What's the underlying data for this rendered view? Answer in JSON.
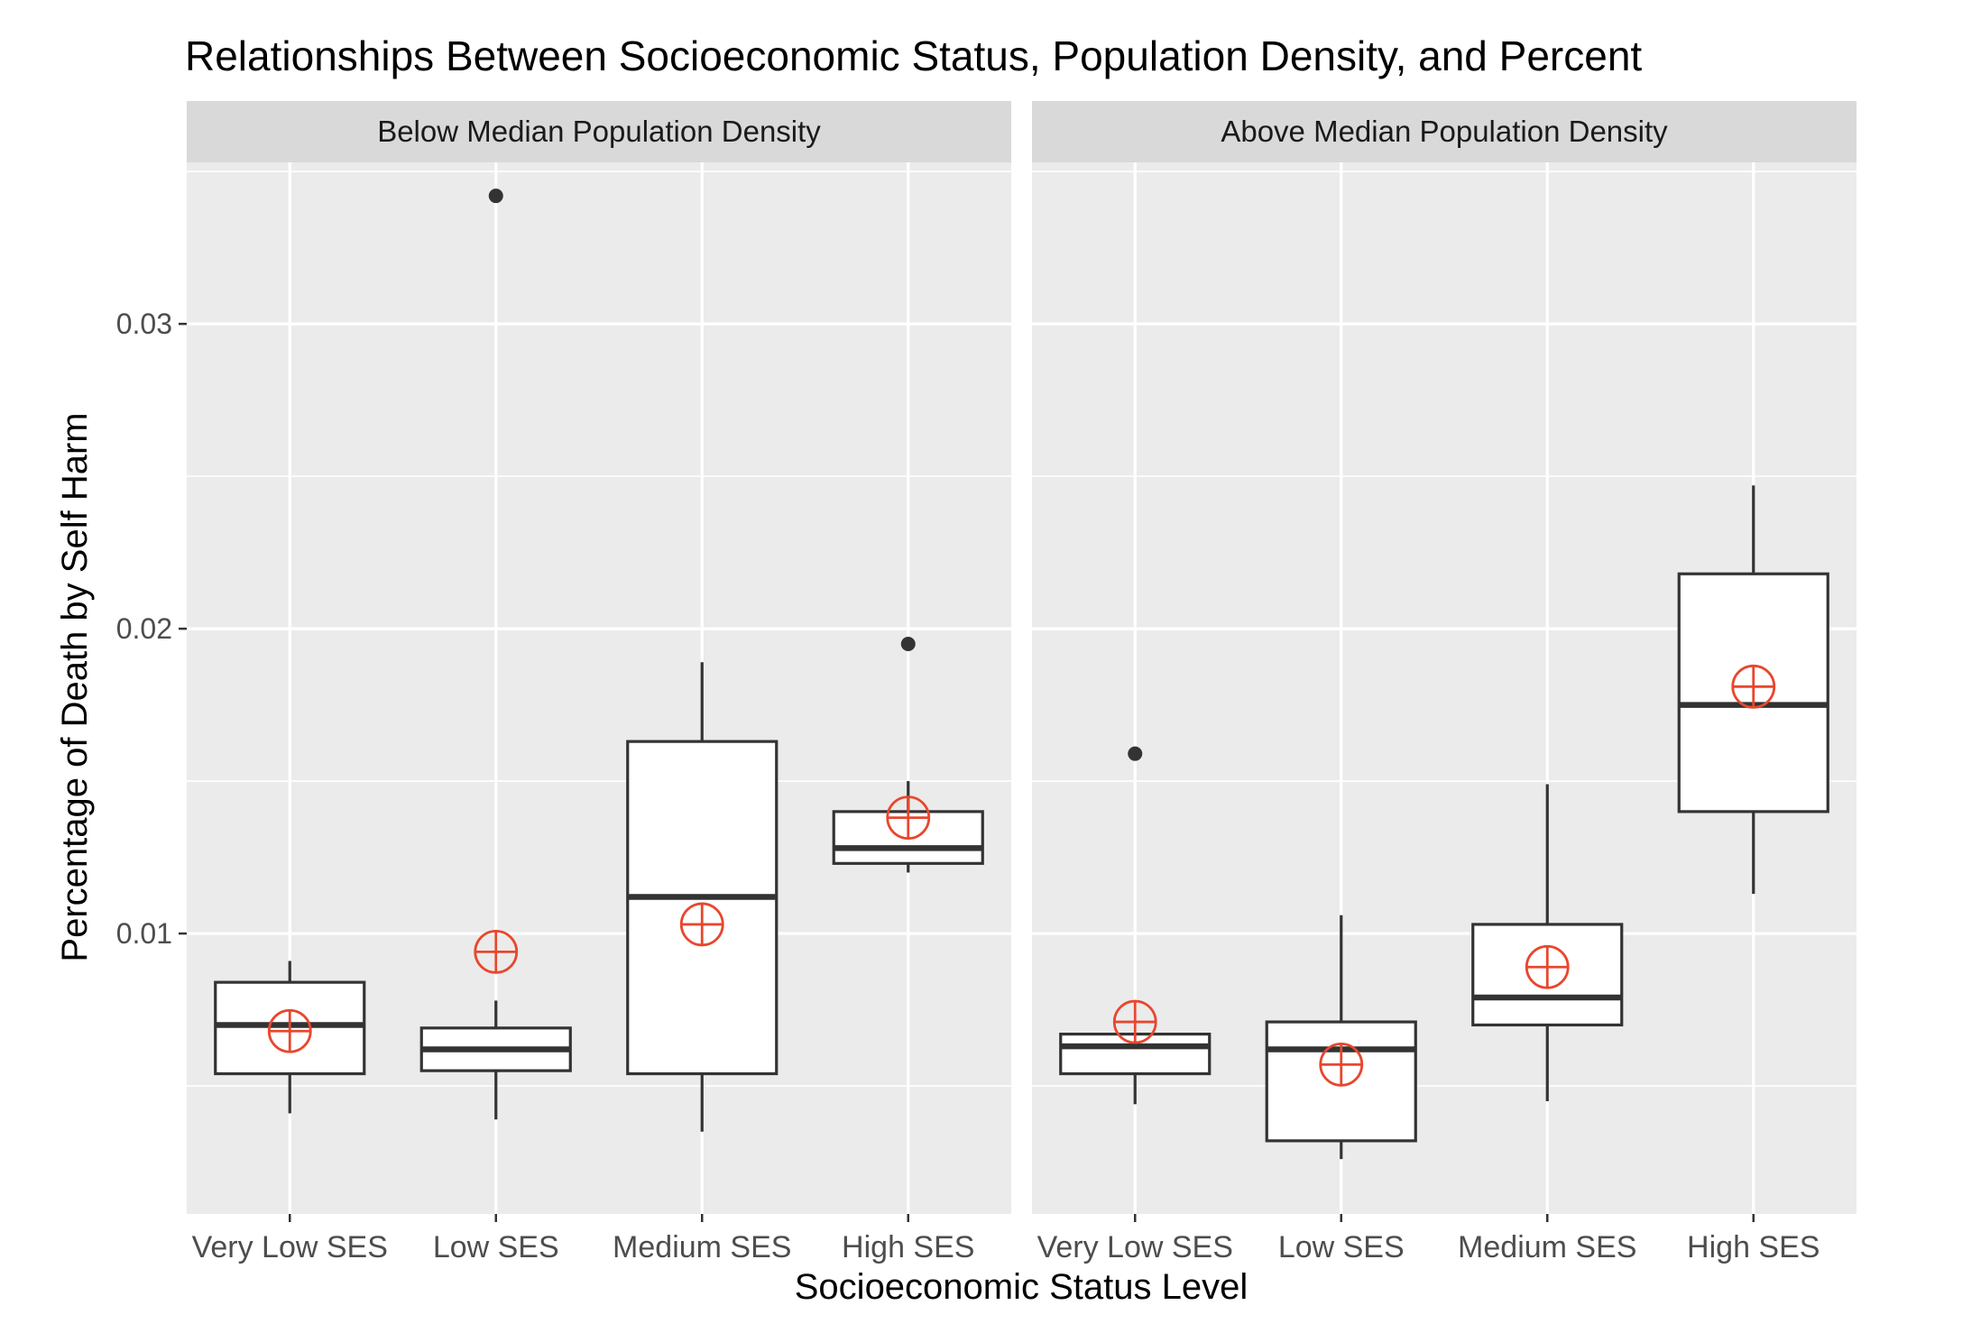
{
  "chart_data": {
    "type": "boxplot",
    "title": "Relationships Between Socioeconomic Status, Population Density, and Percent",
    "xlabel": "Socioeconomic Status Level",
    "ylabel": "Percentage of Death by Self Harm",
    "categories": [
      "Very Low SES",
      "Low SES",
      "Medium SES",
      "High SES"
    ],
    "ylim": [
      0.0008,
      0.0353
    ],
    "yticks": [
      0.01,
      0.02,
      0.03
    ],
    "ytick_labels": [
      "0.01",
      "0.02",
      "0.03"
    ],
    "grid": true,
    "mean_marker": "crossed circle",
    "colors": {
      "panel_bg": "#ebebeb",
      "strip_bg": "#d9d9d9",
      "grid": "#ffffff",
      "box_line": "#333333",
      "box_fill": "#ffffff",
      "mean": "#e8472e",
      "outlier": "#333333"
    },
    "facets": [
      {
        "label": "Below Median Population Density",
        "boxes": [
          {
            "category": "Very Low SES",
            "whisker_low": 0.0041,
            "q1": 0.0054,
            "median": 0.007,
            "q3": 0.0084,
            "whisker_high": 0.0091,
            "mean": 0.0068,
            "outliers": []
          },
          {
            "category": "Low SES",
            "whisker_low": 0.0039,
            "q1": 0.0055,
            "median": 0.0062,
            "q3": 0.0069,
            "whisker_high": 0.0078,
            "mean": 0.0094,
            "outliers": [
              0.0342
            ]
          },
          {
            "category": "Medium SES",
            "whisker_low": 0.0035,
            "q1": 0.0054,
            "median": 0.0112,
            "q3": 0.0163,
            "whisker_high": 0.0189,
            "mean": 0.0103,
            "outliers": []
          },
          {
            "category": "High SES",
            "whisker_low": 0.012,
            "q1": 0.0123,
            "median": 0.0128,
            "q3": 0.014,
            "whisker_high": 0.015,
            "mean": 0.0138,
            "outliers": [
              0.0195
            ]
          }
        ]
      },
      {
        "label": "Above Median Population Density",
        "boxes": [
          {
            "category": "Very Low SES",
            "whisker_low": 0.0044,
            "q1": 0.0054,
            "median": 0.0063,
            "q3": 0.0067,
            "whisker_high": 0.0067,
            "mean": 0.0071,
            "outliers": [
              0.0159
            ]
          },
          {
            "category": "Low SES",
            "whisker_low": 0.0026,
            "q1": 0.0032,
            "median": 0.0062,
            "q3": 0.0071,
            "whisker_high": 0.0106,
            "mean": 0.0057,
            "outliers": []
          },
          {
            "category": "Medium SES",
            "whisker_low": 0.0045,
            "q1": 0.007,
            "median": 0.0079,
            "q3": 0.0103,
            "whisker_high": 0.0149,
            "mean": 0.0089,
            "outliers": []
          },
          {
            "category": "High SES",
            "whisker_low": 0.0113,
            "q1": 0.014,
            "median": 0.0175,
            "q3": 0.0218,
            "whisker_high": 0.0247,
            "mean": 0.0181,
            "outliers": []
          }
        ]
      }
    ]
  }
}
